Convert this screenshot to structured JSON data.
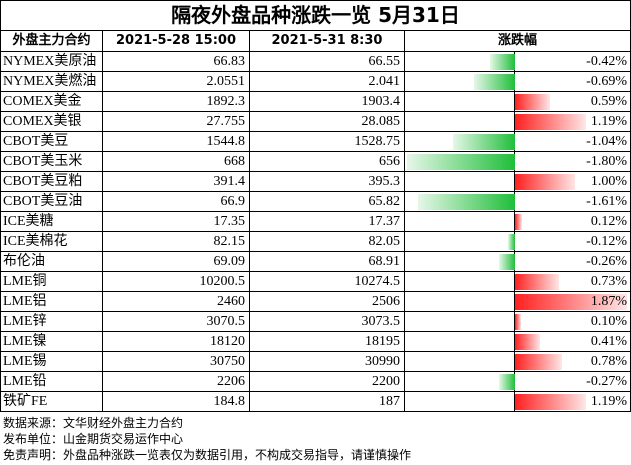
{
  "header": {
    "title": "隔夜外盘品种涨跌一览 5月31日"
  },
  "table": {
    "columns": [
      "外盘主力合约",
      "2021-5-28 15:00",
      "2021-5-31 8:30",
      "涨跌幅"
    ],
    "rows": [
      {
        "name": "NYMEX美原油",
        "prev": "66.83",
        "curr": "66.55",
        "change": -0.42,
        "change_label": "-0.42%"
      },
      {
        "name": "NYMEX美燃油",
        "prev": "2.0551",
        "curr": "2.041",
        "change": -0.69,
        "change_label": "-0.69%"
      },
      {
        "name": "COMEX美金",
        "prev": "1892.3",
        "curr": "1903.4",
        "change": 0.59,
        "change_label": "0.59%"
      },
      {
        "name": "COMEX美银",
        "prev": "27.755",
        "curr": "28.085",
        "change": 1.19,
        "change_label": "1.19%"
      },
      {
        "name": "CBOT美豆",
        "prev": "1544.8",
        "curr": "1528.75",
        "change": -1.04,
        "change_label": "-1.04%"
      },
      {
        "name": "CBOT美玉米",
        "prev": "668",
        "curr": "656",
        "change": -1.8,
        "change_label": "-1.80%"
      },
      {
        "name": "CBOT美豆粕",
        "prev": "391.4",
        "curr": "395.3",
        "change": 1.0,
        "change_label": "1.00%"
      },
      {
        "name": "CBOT美豆油",
        "prev": "66.9",
        "curr": "65.82",
        "change": -1.61,
        "change_label": "-1.61%"
      },
      {
        "name": "ICE美糖",
        "prev": "17.35",
        "curr": "17.37",
        "change": 0.12,
        "change_label": "0.12%"
      },
      {
        "name": "ICE美棉花",
        "prev": "82.15",
        "curr": "82.05",
        "change": -0.12,
        "change_label": "-0.12%"
      },
      {
        "name": "布伦油",
        "prev": "69.09",
        "curr": "68.91",
        "change": -0.26,
        "change_label": "-0.26%"
      },
      {
        "name": "LME铜",
        "prev": "10200.5",
        "curr": "10274.5",
        "change": 0.73,
        "change_label": "0.73%"
      },
      {
        "name": "LME铝",
        "prev": "2460",
        "curr": "2506",
        "change": 1.87,
        "change_label": "1.87%"
      },
      {
        "name": "LME锌",
        "prev": "3070.5",
        "curr": "3073.5",
        "change": 0.1,
        "change_label": "0.10%"
      },
      {
        "name": "LME镍",
        "prev": "18120",
        "curr": "18195",
        "change": 0.41,
        "change_label": "0.41%"
      },
      {
        "name": "LME锡",
        "prev": "30750",
        "curr": "30990",
        "change": 0.78,
        "change_label": "0.78%"
      },
      {
        "name": "LME铅",
        "prev": "2206",
        "curr": "2200",
        "change": -0.27,
        "change_label": "-0.27%"
      },
      {
        "name": "铁矿FE",
        "prev": "184.8",
        "curr": "187",
        "change": 1.19,
        "change_label": "1.19%"
      }
    ]
  },
  "footer": {
    "lines": [
      "数据来源：文华财经外盘主力合约",
      "发布单位：山金期货交易运作中心",
      "免责声明：外盘品种涨跌一览表仅为数据引用，不构成交易指导，请谨慎操作"
    ]
  }
}
